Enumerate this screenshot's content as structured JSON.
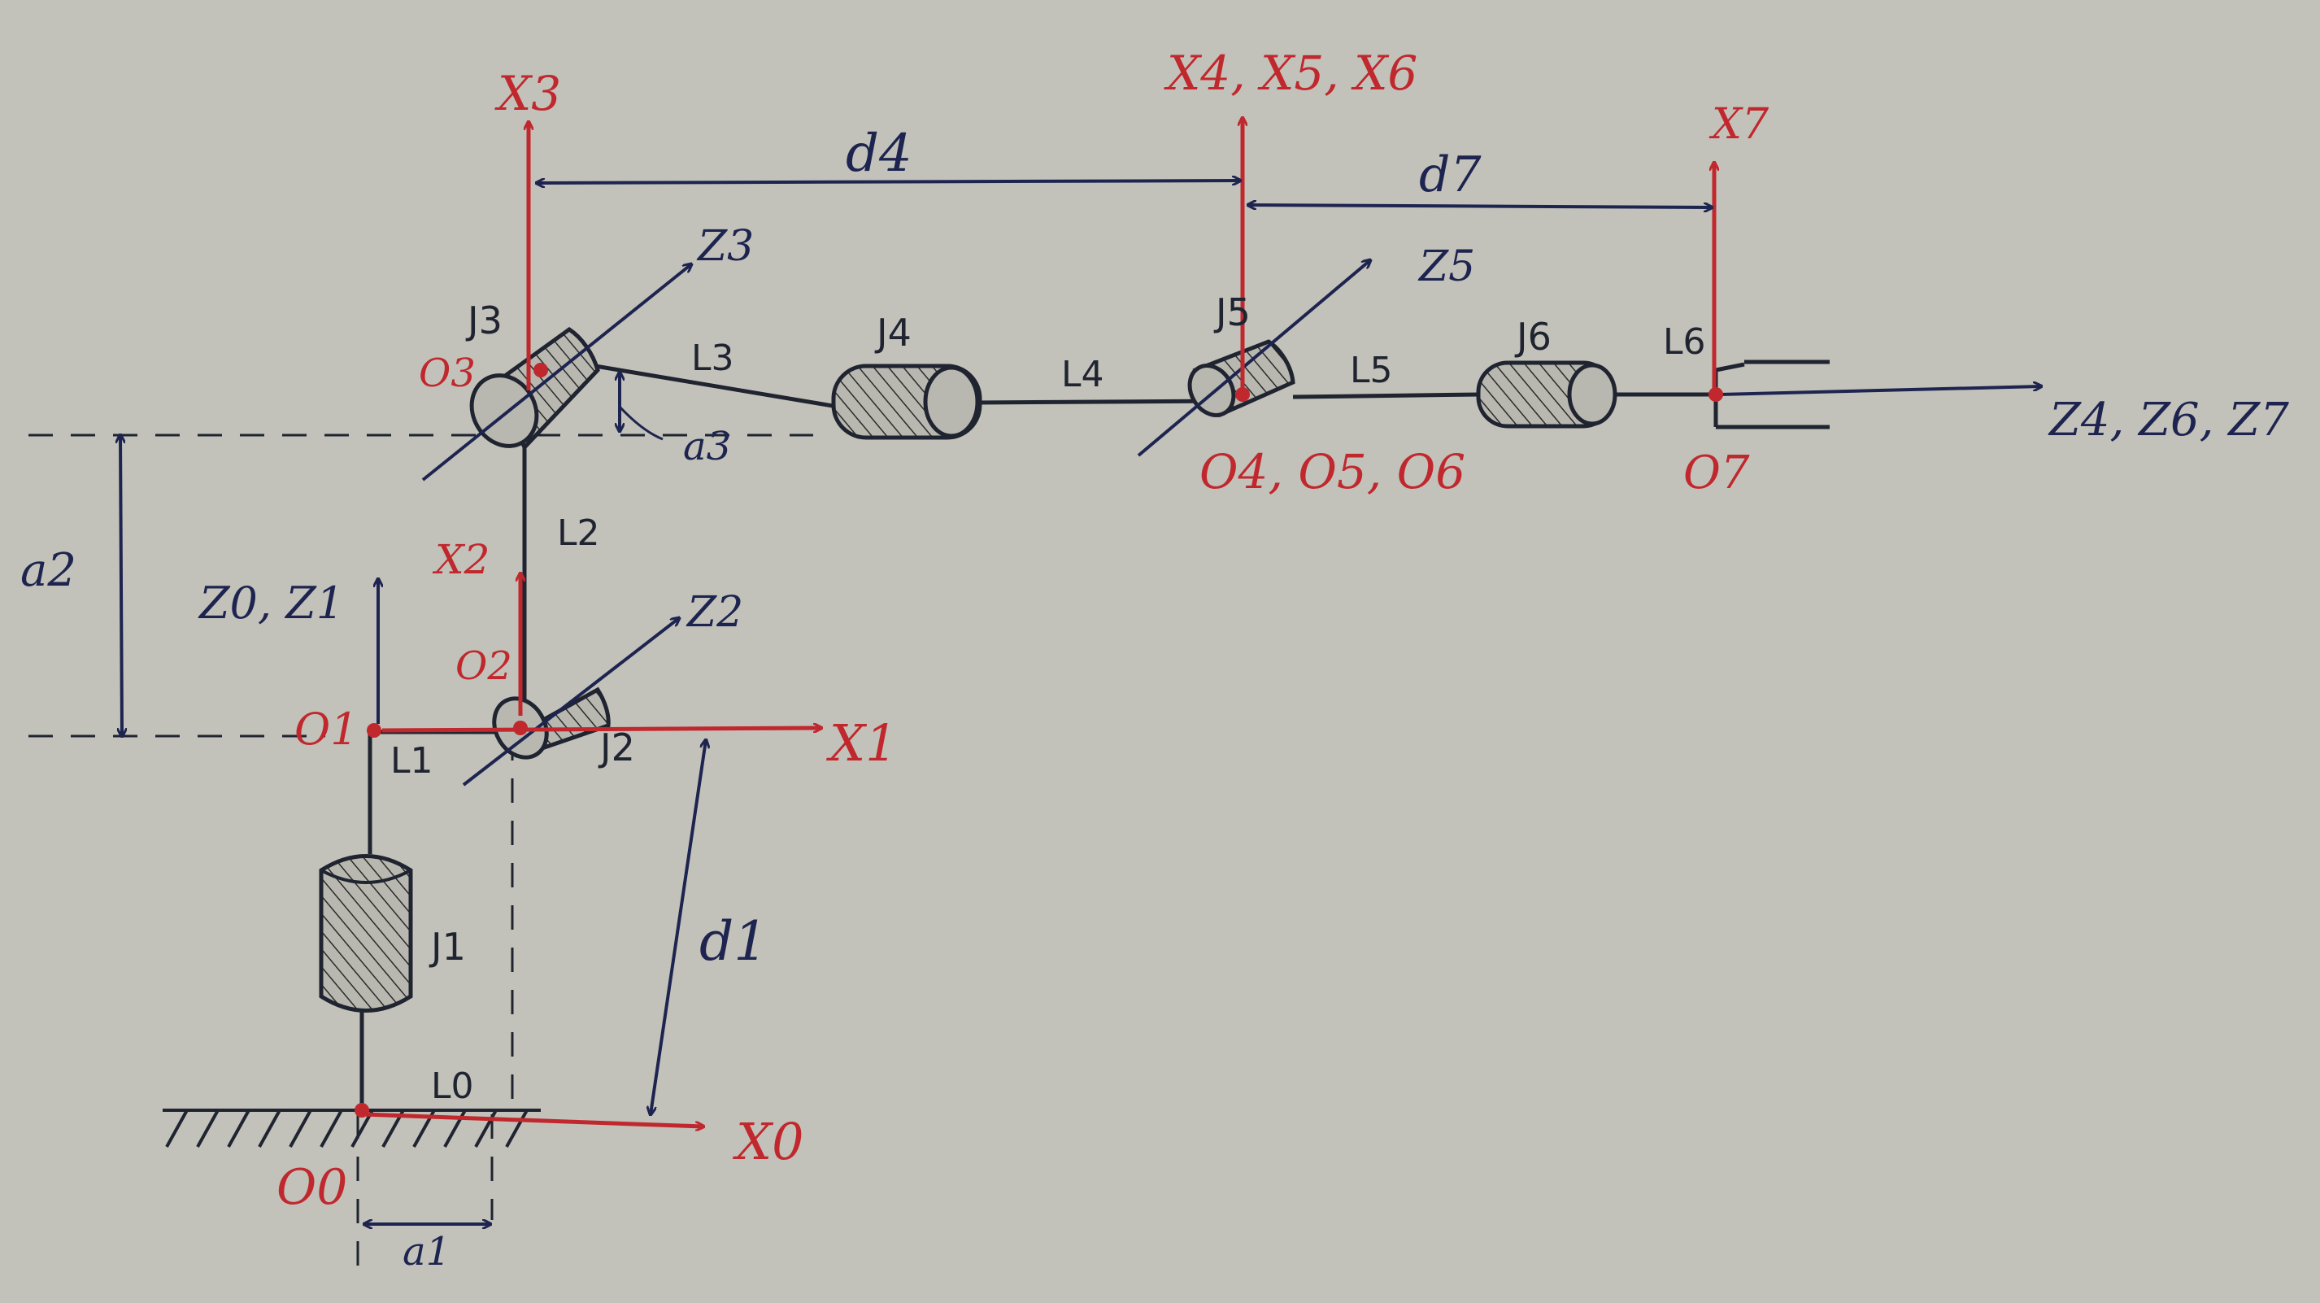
{
  "diagram": {
    "colors": {
      "paper": "#c2c2ba",
      "red": "#c0282d",
      "blue": "#1e2450",
      "ink": "#1f2430"
    },
    "frames": {
      "x0": "X0",
      "x1": "X1",
      "x2": "X2",
      "x3": "X3",
      "x456": "X4, X5, X6",
      "x7": "X7",
      "z01": "Z0, Z1",
      "z2": "Z2",
      "z3": "Z3",
      "z5": "Z5",
      "z467": "Z4, Z6, Z7"
    },
    "origins": {
      "o0": "O0",
      "o1": "O1",
      "o2": "O2",
      "o3": "O3",
      "o456": "O4, O5, O6",
      "o7": "O7"
    },
    "joints": [
      "J1",
      "J2",
      "J3",
      "J4",
      "J5",
      "J6"
    ],
    "links": [
      "L0",
      "L1",
      "L2",
      "L3",
      "L4",
      "L5",
      "L6"
    ],
    "dimensions": {
      "a1": "a1",
      "a2": "a2",
      "a3": "a3",
      "d1": "d1",
      "d4": "d4",
      "d7": "d7"
    }
  }
}
